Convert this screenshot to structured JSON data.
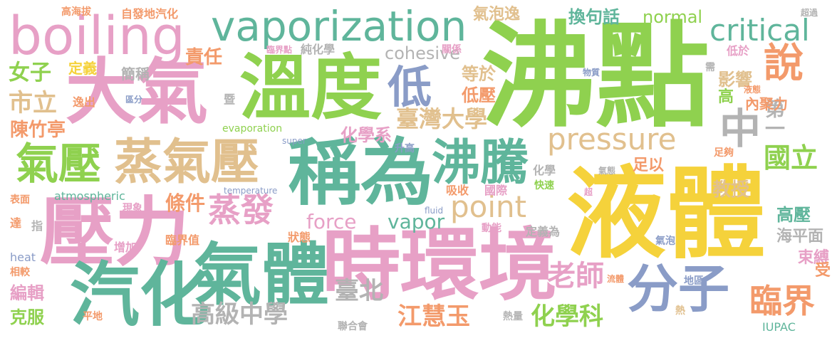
{
  "palette": {
    "green": "#8fd14f",
    "pink": "#e7a0c6",
    "yellow": "#f5d23b",
    "teal": "#5fb59b",
    "blue": "#8a9cc7",
    "orange": "#f39a6b",
    "tan": "#e1c08e",
    "gray": "#b3b3b3"
  },
  "words": [
    {
      "key": "feidian",
      "text": "沸點",
      "color": "#8fd14f"
    },
    {
      "key": "yeti",
      "text": "液體",
      "color": "#f5d23b"
    },
    {
      "key": "wendu",
      "text": "溫度",
      "color": "#8fd14f"
    },
    {
      "key": "daqi",
      "text": "大氣",
      "color": "#e7a0c6"
    },
    {
      "key": "yali",
      "text": "壓力",
      "color": "#e7a0c6"
    },
    {
      "key": "qihua",
      "text": "汽化",
      "color": "#5fb59b"
    },
    {
      "key": "shihuanjing",
      "text": "時環境",
      "color": "#e7a0c6"
    },
    {
      "key": "chengwei",
      "text": "稱為",
      "color": "#5fb59b"
    },
    {
      "key": "qiti",
      "text": "氣體",
      "color": "#5fb59b"
    },
    {
      "key": "zhengqiya",
      "text": "蒸氣壓",
      "color": "#e1c08e"
    },
    {
      "key": "boiling",
      "text": "boiling",
      "color": "#e7a0c6"
    },
    {
      "key": "vaporization",
      "text": "vaporization",
      "color": "#5fb59b"
    },
    {
      "key": "feiteng",
      "text": "沸騰",
      "color": "#5fb59b"
    },
    {
      "key": "fenzi",
      "text": "分子",
      "color": "#8a9cc7"
    },
    {
      "key": "qiya",
      "text": "氣壓",
      "color": "#8fd14f"
    },
    {
      "key": "pressure",
      "text": "pressure",
      "color": "#e1c08e"
    },
    {
      "key": "point",
      "text": "point",
      "color": "#e1c08e"
    },
    {
      "key": "di",
      "text": "低",
      "color": "#8a9cc7"
    },
    {
      "key": "zhong",
      "text": "中",
      "color": "#b3b3b3"
    },
    {
      "key": "diyi",
      "text": "第一",
      "color": "#b3b3b3"
    },
    {
      "key": "critical",
      "text": "critical",
      "color": "#5fb59b"
    },
    {
      "key": "shuo",
      "text": "說",
      "color": "#f39a6b"
    },
    {
      "key": "linjie",
      "text": "臨界",
      "color": "#f39a6b"
    },
    {
      "key": "zhengfa",
      "text": "蒸發",
      "color": "#e7a0c6"
    },
    {
      "key": "guoli",
      "text": "國立",
      "color": "#8fd14f"
    },
    {
      "key": "huaxueke",
      "text": "化學科",
      "color": "#8fd14f"
    },
    {
      "key": "jianghuiyu",
      "text": "江慧玉",
      "color": "#f39a6b"
    },
    {
      "key": "laoshi",
      "text": "老師",
      "color": "#e7a0c6"
    },
    {
      "key": "gaojizhongxue",
      "text": "高級中學",
      "color": "#b3b3b3"
    },
    {
      "key": "taibei",
      "text": "臺北",
      "color": "#b3b3b3"
    },
    {
      "key": "shili",
      "text": "市立",
      "color": "#e1c08e"
    },
    {
      "key": "nuzi",
      "text": "女子",
      "color": "#8fd14f"
    },
    {
      "key": "chenzhuting",
      "text": "陳竹亭",
      "color": "#f39a6b"
    },
    {
      "key": "taiwandaxue",
      "text": "臺灣大學",
      "color": "#e1c08e"
    },
    {
      "key": "huaxuexi",
      "text": "化學系",
      "color": "#e7a0c6"
    },
    {
      "key": "jiaoshou",
      "text": "教授",
      "color": "#e1c08e"
    },
    {
      "key": "cohesive",
      "text": "cohesive",
      "color": "#b3b3b3"
    },
    {
      "key": "qipaoyi",
      "text": "氣泡逸",
      "color": "#e1c08e"
    },
    {
      "key": "huanjuhua",
      "text": "換句話",
      "color": "#5fb59b"
    },
    {
      "key": "normal",
      "text": "normal",
      "color": "#8fd14f"
    },
    {
      "key": "zeren",
      "text": "責任",
      "color": "#f39a6b"
    },
    {
      "key": "dingyi",
      "text": "定義",
      "color": "#f5d23b"
    },
    {
      "key": "jiancheng",
      "text": "簡稱",
      "color": "#b3b3b3"
    },
    {
      "key": "dengyu",
      "text": "等於",
      "color": "#e1c08e"
    },
    {
      "key": "diya",
      "text": "低壓",
      "color": "#f39a6b"
    },
    {
      "key": "yingxiang",
      "text": "影響",
      "color": "#e1c08e"
    },
    {
      "key": "neijuli",
      "text": "內聚力",
      "color": "#f39a6b"
    },
    {
      "key": "gao",
      "text": "高",
      "color": "#8fd14f"
    },
    {
      "key": "force",
      "text": "force",
      "color": "#e7a0c6"
    },
    {
      "key": "vapor",
      "text": "vapor",
      "color": "#5fb59b"
    },
    {
      "key": "tiaojian",
      "text": "條件",
      "color": "#f39a6b"
    },
    {
      "key": "gaoya",
      "text": "高壓",
      "color": "#5fb59b"
    },
    {
      "key": "haipingmian",
      "text": "海平面",
      "color": "#b3b3b3"
    },
    {
      "key": "shufu",
      "text": "束縛",
      "color": "#e7a0c6"
    },
    {
      "key": "shou",
      "text": "受",
      "color": "#f39a6b"
    },
    {
      "key": "bianji",
      "text": "編輯",
      "color": "#e7a0c6"
    },
    {
      "key": "kefu",
      "text": "克服",
      "color": "#8fd14f"
    },
    {
      "key": "gaohaiba",
      "text": "高海拔",
      "color": "#f39a6b"
    },
    {
      "key": "zifadiqihua",
      "text": "自發地汽化",
      "color": "#f39a6b"
    },
    {
      "key": "linjiedian",
      "text": "臨界點",
      "color": "#e7a0c6"
    },
    {
      "key": "chunhuaxue",
      "text": "純化學",
      "color": "#b3b3b3"
    },
    {
      "key": "guanxi",
      "text": "關係",
      "color": "#e7a0c6"
    },
    {
      "key": "diyu",
      "text": "低於",
      "color": "#e7a0c6"
    },
    {
      "key": "chaoguo",
      "text": "超過",
      "color": "#b3b3b3"
    },
    {
      "key": "wuzhi",
      "text": "物質",
      "color": "#8a9cc7"
    },
    {
      "key": "xu",
      "text": "需",
      "color": "#b3b3b3"
    },
    {
      "key": "yetai",
      "text": "液態",
      "color": "#f39a6b"
    },
    {
      "key": "yichu",
      "text": "逸出",
      "color": "#f39a6b"
    },
    {
      "key": "qufen",
      "text": "區分",
      "color": "#8a9cc7"
    },
    {
      "key": "ji",
      "text": "暨",
      "color": "#b3b3b3"
    },
    {
      "key": "evaporation",
      "text": "evaporation",
      "color": "#8fd14f"
    },
    {
      "key": "super",
      "text": "super",
      "color": "#8a9cc7"
    },
    {
      "key": "shenggao",
      "text": "升高",
      "color": "#8a9cc7"
    },
    {
      "key": "zugou",
      "text": "足夠",
      "color": "#f39a6b"
    },
    {
      "key": "zuyi",
      "text": "足以",
      "color": "#f39a6b"
    },
    {
      "key": "qitai",
      "text": "氣態",
      "color": "#b3b3b3"
    },
    {
      "key": "huaxue",
      "text": "化學",
      "color": "#b3b3b3"
    },
    {
      "key": "kuaisu",
      "text": "快速",
      "color": "#8fd14f"
    },
    {
      "key": "chao",
      "text": "超",
      "color": "#e7a0c6"
    },
    {
      "key": "xishou",
      "text": "吸收",
      "color": "#f39a6b"
    },
    {
      "key": "guoji",
      "text": "國際",
      "color": "#e7a0c6"
    },
    {
      "key": "atmospheric",
      "text": "atmospheric",
      "color": "#5fb59b"
    },
    {
      "key": "temperature",
      "text": "temperature",
      "color": "#8a9cc7"
    },
    {
      "key": "biaomian",
      "text": "表面",
      "color": "#f39a6b"
    },
    {
      "key": "xianxiang",
      "text": "現象",
      "color": "#e7a0c6"
    },
    {
      "key": "da",
      "text": "達",
      "color": "#f39a6b"
    },
    {
      "key": "zhi",
      "text": "指",
      "color": "#b3b3b3"
    },
    {
      "key": "linjiezhi",
      "text": "臨界值",
      "color": "#f39a6b"
    },
    {
      "key": "zhuangtai",
      "text": "狀態",
      "color": "#f39a6b"
    },
    {
      "key": "fluid",
      "text": "fluid",
      "color": "#8a9cc7"
    },
    {
      "key": "dongneng",
      "text": "動能",
      "color": "#e7a0c6"
    },
    {
      "key": "dingyiwei",
      "text": "定義為",
      "color": "#b3b3b3"
    },
    {
      "key": "qipao",
      "text": "氣泡",
      "color": "#8a9cc7"
    },
    {
      "key": "heat",
      "text": "heat",
      "color": "#8a9cc7"
    },
    {
      "key": "zengjia",
      "text": "增加",
      "color": "#e7a0c6"
    },
    {
      "key": "xiangjiao",
      "text": "相較",
      "color": "#f39a6b"
    },
    {
      "key": "liuti",
      "text": "流體",
      "color": "#f39a6b"
    },
    {
      "key": "diqu",
      "text": "地區",
      "color": "#8a9cc7"
    },
    {
      "key": "re",
      "text": "熱",
      "color": "#e1c08e"
    },
    {
      "key": "pingdi",
      "text": "平地",
      "color": "#f39a6b"
    },
    {
      "key": "reliang",
      "text": "熱量",
      "color": "#b3b3b3"
    },
    {
      "key": "lianhehui",
      "text": "聯合會",
      "color": "#b3b3b3"
    },
    {
      "key": "iupac",
      "text": "IUPAC",
      "color": "#5fb59b"
    }
  ]
}
